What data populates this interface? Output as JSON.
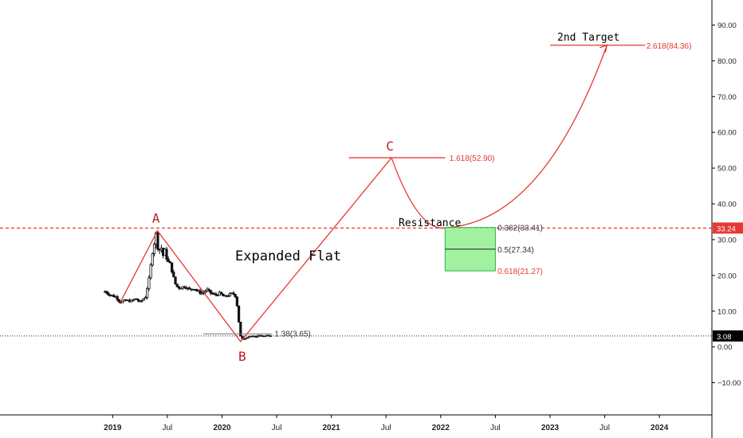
{
  "chart_data": {
    "type": "candlestick",
    "price_axis": {
      "ticks": [
        "90.00",
        "80.00",
        "70.00",
        "60.00",
        "50.00",
        "40.00",
        "30.00",
        "20.00",
        "10.00",
        "0.00",
        "−10.00"
      ],
      "tick_values": [
        90,
        80,
        70,
        60,
        50,
        40,
        30,
        20,
        10,
        0,
        -10
      ],
      "range": [
        -19,
        97
      ]
    },
    "time_axis": {
      "ticks": [
        "2019",
        "Jul",
        "2020",
        "Jul",
        "2021",
        "Jul",
        "2022",
        "Jul",
        "2023",
        "Jul",
        "2024"
      ],
      "tick_years": [
        2019.0,
        2019.5,
        2020.0,
        2020.5,
        2021.0,
        2021.5,
        2022.0,
        2022.5,
        2023.0,
        2023.5,
        2024.0
      ],
      "range": [
        2017.97,
        2024.48
      ]
    },
    "price_labels": {
      "resistance_badge": "33.24",
      "last_price_badge": "3.08",
      "resistance_value": 33.24,
      "last_price_value": 3.08
    },
    "price_path": [
      [
        2018.93,
        15.5
      ],
      [
        2018.98,
        14.5
      ],
      [
        2019.03,
        14.0
      ],
      [
        2019.07,
        12.5
      ],
      [
        2019.12,
        13.0
      ],
      [
        2019.17,
        12.8
      ],
      [
        2019.21,
        13.5
      ],
      [
        2019.25,
        12.5
      ],
      [
        2019.3,
        14.0
      ],
      [
        2019.34,
        20.0
      ],
      [
        2019.36,
        26.0
      ],
      [
        2019.38,
        29.0
      ],
      [
        2019.4,
        32.0
      ],
      [
        2019.42,
        26.0
      ],
      [
        2019.44,
        28.5
      ],
      [
        2019.46,
        25.5
      ],
      [
        2019.48,
        27.0
      ],
      [
        2019.5,
        24.0
      ],
      [
        2019.53,
        23.0
      ],
      [
        2019.56,
        19.0
      ],
      [
        2019.58,
        17.0
      ],
      [
        2019.62,
        16.5
      ],
      [
        2019.66,
        17.0
      ],
      [
        2019.7,
        16.0
      ],
      [
        2019.74,
        16.5
      ],
      [
        2019.78,
        15.5
      ],
      [
        2019.82,
        15.0
      ],
      [
        2019.86,
        16.0
      ],
      [
        2019.9,
        15.0
      ],
      [
        2019.94,
        14.5
      ],
      [
        2019.98,
        15.0
      ],
      [
        2020.02,
        14.0
      ],
      [
        2020.06,
        14.5
      ],
      [
        2020.1,
        15.0
      ],
      [
        2020.13,
        14.0
      ],
      [
        2020.15,
        8.0
      ],
      [
        2020.17,
        3.0
      ],
      [
        2020.19,
        2.0
      ],
      [
        2020.22,
        2.6
      ],
      [
        2020.26,
        3.1
      ],
      [
        2020.3,
        2.8
      ],
      [
        2020.34,
        3.3
      ],
      [
        2020.38,
        3.0
      ],
      [
        2020.42,
        3.2
      ],
      [
        2020.46,
        3.1
      ]
    ],
    "wave_points": {
      "start": [
        2019.07,
        12.5
      ],
      "A": [
        2019.41,
        32.5
      ],
      "B": [
        2020.17,
        1.5
      ],
      "C": [
        2021.55,
        52.9
      ],
      "bottom": [
        2022.07,
        33.4
      ],
      "target": [
        2023.52,
        84.36
      ]
    },
    "labels": {
      "A": "A",
      "B": "B",
      "C": "C",
      "pattern": "Expanded Flat",
      "resistance": "Resistance",
      "target": "2nd Target",
      "fib_138": "1.38(3.65)",
      "fib_1618": "1.618(52.90)",
      "fib_2618": "2.618(84.36)",
      "fib_0382": "0.382(33.41)",
      "fib_05": "0.5(27.34)",
      "fib_0618": "0.618(21.27)"
    },
    "fib_levels": {
      "level_138": 3.65,
      "level_1618": 52.9,
      "level_2618": 84.36,
      "zone_top": 33.41,
      "zone_mid": 27.34,
      "zone_bottom": 21.27
    },
    "colors": {
      "annotation_red": "#e53935",
      "wave_letter": "#b71c1c",
      "zone_fill": "#90ee90",
      "zone_border": "#2fb344",
      "badge_red": "#e53935",
      "badge_black": "#000000",
      "candle": "#111111"
    },
    "grid": false
  }
}
